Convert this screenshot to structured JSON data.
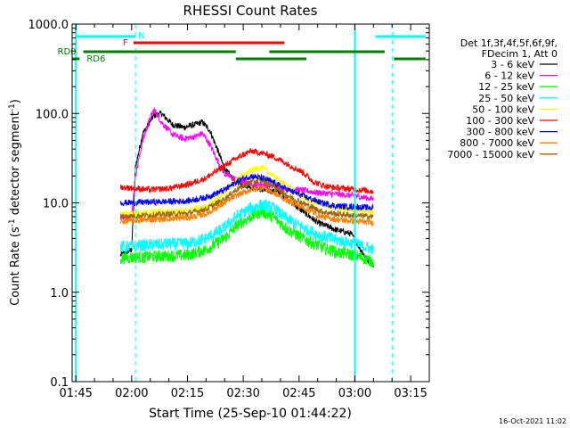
{
  "chart_data": {
    "type": "line",
    "title": "RHESSI Count Rates",
    "xlabel": "Start Time (25-Sep-10 01:44:22)",
    "ylabel_parts": [
      "Count Rate (s",
      "-1",
      " detector segment",
      "-1",
      ")"
    ],
    "y_scale": "log",
    "ylim": [
      0.1,
      1000
    ],
    "x_unit": "minutes after 01:45",
    "xlim": [
      -1,
      95
    ],
    "x_ticks": [
      {
        "v": 0,
        "label": "01:45"
      },
      {
        "v": 15,
        "label": "02:00"
      },
      {
        "v": 30,
        "label": "02:15"
      },
      {
        "v": 45,
        "label": "02:30"
      },
      {
        "v": 60,
        "label": "02:45"
      },
      {
        "v": 75,
        "label": "03:00"
      },
      {
        "v": 90,
        "label": "03:15"
      }
    ],
    "y_ticks": [
      {
        "v": 0.1,
        "label": "0.1"
      },
      {
        "v": 1,
        "label": "1.0"
      },
      {
        "v": 10,
        "label": "10.0"
      },
      {
        "v": 100,
        "label": "100.0"
      },
      {
        "v": 1000,
        "label": "1000.0"
      }
    ],
    "legend_title": [
      "Det 1f,3f,4f,5f,6f,9f,",
      "FDecim 1, Att 0"
    ],
    "legend_position": "right",
    "series": [
      {
        "name": "3 - 6 keV",
        "color": "#000000",
        "points": [
          [
            12,
            2.6
          ],
          [
            15,
            3
          ],
          [
            16,
            25
          ],
          [
            18,
            60
          ],
          [
            21,
            95
          ],
          [
            23,
            100
          ],
          [
            26,
            75
          ],
          [
            29,
            70
          ],
          [
            32,
            75
          ],
          [
            34,
            80
          ],
          [
            36,
            65
          ],
          [
            38,
            40
          ],
          [
            40,
            24
          ],
          [
            42,
            19
          ],
          [
            45,
            16
          ],
          [
            50,
            14
          ],
          [
            55,
            13
          ],
          [
            58,
            10
          ],
          [
            62,
            7.5
          ],
          [
            65,
            6
          ],
          [
            70,
            5
          ],
          [
            74,
            4.5
          ],
          [
            78,
            2.4
          ],
          [
            80,
            2.0
          ]
        ]
      },
      {
        "name": "6 - 12 keV",
        "color": "#ff00ff",
        "points": [
          [
            12,
            7
          ],
          [
            15,
            7.2
          ],
          [
            16,
            20
          ],
          [
            18,
            50
          ],
          [
            20,
            90
          ],
          [
            21,
            110
          ],
          [
            23,
            80
          ],
          [
            26,
            58
          ],
          [
            29,
            52
          ],
          [
            32,
            55
          ],
          [
            34,
            60
          ],
          [
            36,
            45
          ],
          [
            38,
            30
          ],
          [
            40,
            21
          ],
          [
            42,
            19
          ],
          [
            45,
            17
          ],
          [
            50,
            16
          ],
          [
            55,
            15
          ],
          [
            60,
            14
          ],
          [
            65,
            13
          ],
          [
            70,
            12.5
          ],
          [
            75,
            12
          ],
          [
            80,
            11
          ]
        ]
      },
      {
        "name": "12 - 25 keV",
        "color": "#00ff00",
        "points": [
          [
            12,
            2.4
          ],
          [
            20,
            2.5
          ],
          [
            30,
            2.6
          ],
          [
            35,
            3
          ],
          [
            40,
            4
          ],
          [
            43,
            5.5
          ],
          [
            47,
            7
          ],
          [
            50,
            8
          ],
          [
            53,
            7
          ],
          [
            57,
            5
          ],
          [
            62,
            3.8
          ],
          [
            66,
            3.2
          ],
          [
            70,
            2.8
          ],
          [
            75,
            2.6
          ],
          [
            80,
            2.2
          ]
        ]
      },
      {
        "name": "25 - 50 keV",
        "color": "#00ffff",
        "points": [
          [
            12,
            3.2
          ],
          [
            20,
            3.4
          ],
          [
            30,
            3.5
          ],
          [
            35,
            4
          ],
          [
            40,
            5.3
          ],
          [
            43,
            7
          ],
          [
            47,
            8.7
          ],
          [
            50,
            9.5
          ],
          [
            53,
            8.7
          ],
          [
            57,
            6.5
          ],
          [
            62,
            5
          ],
          [
            66,
            4.3
          ],
          [
            70,
            3.8
          ],
          [
            75,
            3.5
          ],
          [
            80,
            3.0
          ]
        ]
      },
      {
        "name": "50 - 100 keV",
        "color": "#ffff00",
        "points": [
          [
            12,
            7.5
          ],
          [
            20,
            7.8
          ],
          [
            30,
            8.2
          ],
          [
            35,
            9
          ],
          [
            40,
            13
          ],
          [
            43,
            18
          ],
          [
            47,
            23
          ],
          [
            50,
            25
          ],
          [
            53,
            20
          ],
          [
            57,
            15
          ],
          [
            62,
            11
          ],
          [
            66,
            9.5
          ],
          [
            70,
            8.8
          ],
          [
            75,
            8.3
          ],
          [
            80,
            8
          ]
        ]
      },
      {
        "name": "100 - 300 keV",
        "color": "#ff0000",
        "points": [
          [
            12,
            15
          ],
          [
            20,
            14
          ],
          [
            25,
            14.5
          ],
          [
            30,
            16
          ],
          [
            35,
            19
          ],
          [
            40,
            26
          ],
          [
            44,
            33
          ],
          [
            47,
            38
          ],
          [
            50,
            36
          ],
          [
            53,
            33
          ],
          [
            57,
            27
          ],
          [
            61,
            22
          ],
          [
            64,
            17
          ],
          [
            68,
            15
          ],
          [
            72,
            14.5
          ],
          [
            76,
            14
          ],
          [
            80,
            13.5
          ]
        ]
      },
      {
        "name": "300 - 800 keV",
        "color": "#0000ff",
        "points": [
          [
            12,
            10
          ],
          [
            20,
            10.2
          ],
          [
            30,
            10.5
          ],
          [
            35,
            11.5
          ],
          [
            40,
            14
          ],
          [
            44,
            18
          ],
          [
            47,
            20
          ],
          [
            50,
            19
          ],
          [
            53,
            17
          ],
          [
            57,
            14
          ],
          [
            62,
            11.5
          ],
          [
            66,
            10
          ],
          [
            70,
            9.2
          ],
          [
            75,
            9
          ],
          [
            80,
            8.8
          ]
        ]
      },
      {
        "name": "800 - 7000 keV",
        "color": "#ff8000",
        "points": [
          [
            12,
            6.2
          ],
          [
            20,
            6.5
          ],
          [
            30,
            6.8
          ],
          [
            35,
            7.5
          ],
          [
            40,
            10
          ],
          [
            43,
            12
          ],
          [
            47,
            14
          ],
          [
            50,
            15
          ],
          [
            53,
            13
          ],
          [
            57,
            10.5
          ],
          [
            62,
            8.5
          ],
          [
            66,
            7
          ],
          [
            70,
            6.5
          ],
          [
            75,
            6.2
          ],
          [
            80,
            6
          ]
        ]
      },
      {
        "name": "7000 - 15000 keV",
        "color": "#996600",
        "points": [
          [
            12,
            7
          ],
          [
            20,
            7.3
          ],
          [
            30,
            7.6
          ],
          [
            35,
            8.5
          ],
          [
            40,
            11
          ],
          [
            43,
            14
          ],
          [
            47,
            17
          ],
          [
            50,
            18
          ],
          [
            53,
            15.5
          ],
          [
            57,
            12
          ],
          [
            62,
            9.5
          ],
          [
            66,
            8
          ],
          [
            70,
            7.5
          ],
          [
            75,
            7.2
          ],
          [
            80,
            7
          ]
        ]
      }
    ],
    "annotations": {
      "vlines_solid_minutes": [
        0,
        75
      ],
      "vlines_dashed_minutes": [
        16,
        85
      ],
      "night_label": "N",
      "flare_label": "F",
      "rd0_label": "RD0",
      "rd6_label": "RD6",
      "night_segments": [
        [
          0,
          16
        ],
        [
          80.5,
          94
        ]
      ],
      "flare_segments": [
        [
          15.5,
          56
        ]
      ],
      "rd0_segments": [
        [
          2,
          43
        ],
        [
          52,
          83
        ]
      ],
      "rd6_segments": [
        [
          -1,
          1
        ],
        [
          43,
          62
        ],
        [
          85.5,
          94
        ]
      ]
    },
    "grid": false,
    "date_stamp": "16-Oct-2021 11:02"
  }
}
